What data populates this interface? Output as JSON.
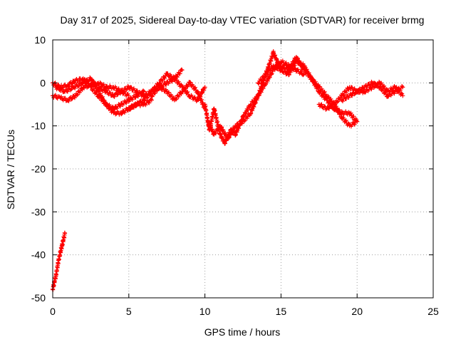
{
  "chart_data": {
    "type": "scatter",
    "title": "Day 317 of 2025, Sidereal Day-to-day VTEC variation (SDTVAR) for receiver brmg",
    "xlabel": "GPS time / hours",
    "ylabel": "SDTVAR / TECUs",
    "xlim": [
      0,
      25
    ],
    "ylim": [
      -50,
      10
    ],
    "xticks": [
      0,
      5,
      10,
      15,
      20,
      25
    ],
    "yticks": [
      -50,
      -40,
      -30,
      -20,
      -10,
      0,
      10
    ],
    "grid": true,
    "marker": "plus",
    "color": "#ff0000",
    "series": [
      {
        "name": "sat-a",
        "x": [
          0.0,
          0.5,
          1.0,
          1.5,
          2.0,
          2.5,
          3.0,
          3.5,
          4.0,
          4.5,
          5.0,
          5.5,
          6.0
        ],
        "y": [
          0,
          -1,
          -0.5,
          0.5,
          1,
          -1,
          -3,
          -5,
          -6,
          -5,
          -4,
          -3,
          -2
        ]
      },
      {
        "name": "sat-b",
        "x": [
          0.0,
          0.5,
          1.0,
          1.5,
          2.0,
          2.5,
          3.0,
          3.5,
          4.0,
          4.5,
          5.0
        ],
        "y": [
          -3,
          -3.5,
          -4,
          -3,
          -1,
          -0.5,
          0,
          -1,
          -1,
          -2,
          -3
        ]
      },
      {
        "name": "sat-c",
        "x": [
          0.2,
          0.8,
          1.4,
          2.0,
          2.5,
          3.0,
          3.5,
          4.0,
          4.5,
          5.0,
          5.5,
          6.0,
          6.5
        ],
        "y": [
          -1,
          -2,
          -1,
          0,
          1,
          -2,
          -5,
          -7,
          -7,
          -6,
          -5,
          -5,
          -4
        ]
      },
      {
        "name": "sat-d",
        "x": [
          3.0,
          3.5,
          4.0,
          4.5,
          5.0,
          5.5,
          6.0,
          6.5,
          7.0,
          7.5,
          8.0,
          8.5
        ],
        "y": [
          -1,
          -2,
          -3,
          -2,
          -1,
          -2,
          -3,
          -2,
          -1,
          0,
          1,
          3
        ]
      },
      {
        "name": "sat-e",
        "x": [
          5.0,
          5.5,
          6.0,
          6.5,
          7.0,
          7.5,
          8.0,
          8.5,
          9.0,
          9.5,
          10.0
        ],
        "y": [
          -6,
          -5,
          -4,
          -2,
          0,
          2,
          1,
          -1,
          -3,
          -4,
          -1
        ]
      },
      {
        "name": "sat-f",
        "x": [
          6.5,
          7.0,
          7.5,
          8.0,
          8.5,
          9.0,
          9.5,
          10.0
        ],
        "y": [
          -3,
          -1,
          -2,
          -4,
          -2,
          0,
          -2,
          -6
        ]
      },
      {
        "name": "sat-g",
        "x": [
          10.0,
          10.3,
          10.6,
          11.0,
          11.3,
          11.7,
          12.0,
          12.5,
          13.0,
          13.5,
          14.0,
          14.5,
          15.0
        ],
        "y": [
          -5,
          -11,
          -6,
          -12,
          -14,
          -11,
          -12,
          -8,
          -5,
          -3,
          2,
          7,
          3
        ]
      },
      {
        "name": "sat-h",
        "x": [
          10.2,
          10.6,
          11.0,
          11.5,
          12.0,
          12.5,
          13.0,
          13.5,
          14.0,
          14.5,
          15.0,
          15.5,
          16.0,
          16.5
        ],
        "y": [
          -9,
          -12,
          -10,
          -13,
          -10,
          -9,
          -7,
          -3,
          0,
          3,
          5,
          4,
          3,
          2
        ]
      },
      {
        "name": "sat-i",
        "x": [
          13.5,
          14.0,
          14.5,
          15.0,
          15.5,
          16.0,
          16.5,
          17.0,
          17.5,
          18.0,
          18.5,
          19.0,
          19.5,
          20.0
        ],
        "y": [
          0,
          2,
          4,
          3,
          2,
          5,
          4,
          1,
          -2,
          -4,
          -6,
          -7,
          -7,
          -9
        ]
      },
      {
        "name": "sat-j",
        "x": [
          15.0,
          15.5,
          16.0,
          16.5,
          17.0,
          17.5,
          18.0,
          18.5,
          19.0,
          19.5,
          20.0
        ],
        "y": [
          4,
          3,
          6,
          3,
          1,
          -1,
          -3,
          -5,
          -8,
          -10,
          -9
        ]
      },
      {
        "name": "sat-k",
        "x": [
          17.5,
          18.0,
          18.5,
          19.0,
          19.5,
          20.0,
          20.5,
          21.0,
          21.5,
          22.0,
          22.5,
          23.0
        ],
        "y": [
          -5,
          -6,
          -5,
          -3,
          -1,
          -2,
          -2,
          -1,
          0,
          -2,
          -1,
          -3
        ]
      },
      {
        "name": "sat-l",
        "x": [
          19.0,
          19.5,
          20.0,
          20.5,
          21.0,
          21.5,
          22.0,
          22.5,
          23.0
        ],
        "y": [
          -4,
          -3,
          -2,
          -1,
          0,
          -1,
          -3,
          -2,
          -1
        ]
      },
      {
        "name": "sat-m",
        "x": [
          0.0,
          0.2,
          0.4,
          0.6,
          0.8
        ],
        "y": [
          -48,
          -45,
          -41,
          -38,
          -35
        ]
      }
    ]
  }
}
